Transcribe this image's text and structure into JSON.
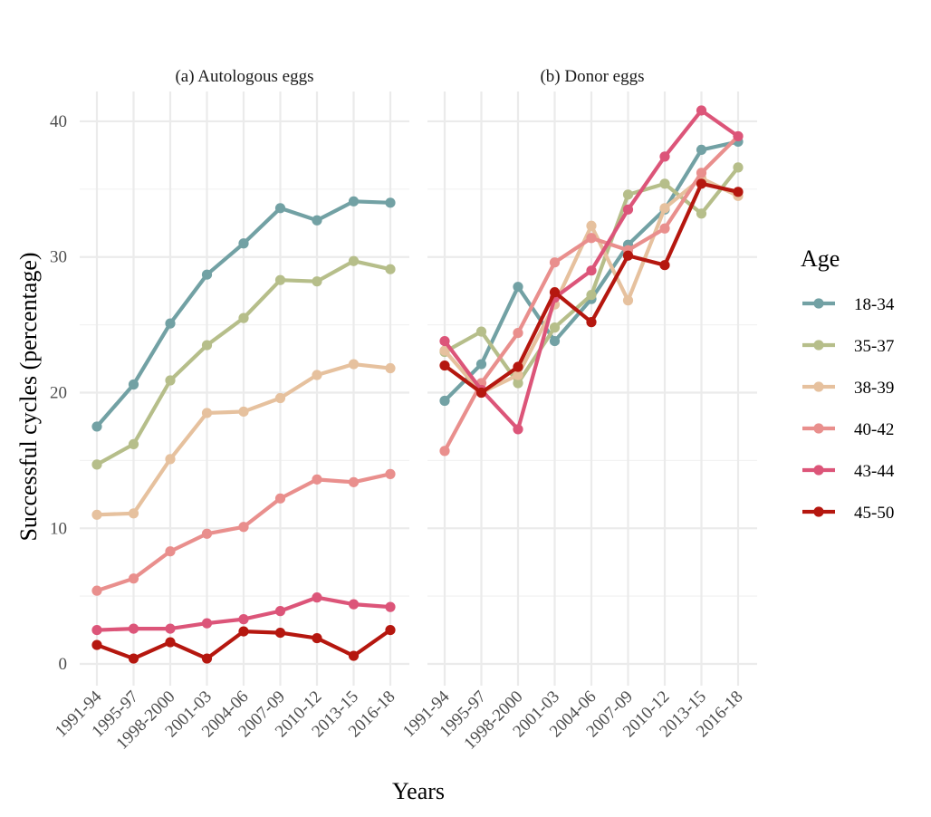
{
  "chart_data": {
    "type": "line",
    "x_label": "Years",
    "y_label": "Successful cycles (percentage)",
    "categories": [
      "1991-94",
      "1995-97",
      "1998-2000",
      "2001-03",
      "2004-06",
      "2007-09",
      "2010-12",
      "2013-15",
      "2016-18"
    ],
    "ylim": [
      -1.6,
      42.2
    ],
    "y_ticks": [
      0,
      10,
      20,
      30,
      40
    ],
    "grid": true,
    "legend": {
      "title": "Age",
      "position": "right",
      "entries": [
        {
          "name": "18-34",
          "color": "#72a1a4"
        },
        {
          "name": "35-37",
          "color": "#b6be8a"
        },
        {
          "name": "38-39",
          "color": "#e6c19e"
        },
        {
          "name": "40-42",
          "color": "#e98f8d"
        },
        {
          "name": "43-44",
          "color": "#dc5579"
        },
        {
          "name": "45-50",
          "color": "#b5170f"
        }
      ]
    },
    "panels": [
      {
        "title": "(a) Autologous eggs",
        "series": [
          {
            "name": "18-34",
            "color": "#72a1a4",
            "values": [
              17.5,
              20.6,
              25.1,
              28.7,
              31.0,
              33.6,
              32.7,
              34.1,
              34.0
            ]
          },
          {
            "name": "35-37",
            "color": "#b6be8a",
            "values": [
              14.7,
              16.2,
              20.9,
              23.5,
              25.5,
              28.3,
              28.2,
              29.7,
              29.1
            ]
          },
          {
            "name": "38-39",
            "color": "#e6c19e",
            "values": [
              11.0,
              11.1,
              15.1,
              18.5,
              18.6,
              19.6,
              21.3,
              22.1,
              21.8
            ]
          },
          {
            "name": "40-42",
            "color": "#e98f8d",
            "values": [
              5.4,
              6.3,
              8.3,
              9.6,
              10.1,
              12.2,
              13.6,
              13.4,
              14.0
            ]
          },
          {
            "name": "43-44",
            "color": "#dc5579",
            "values": [
              2.5,
              2.6,
              2.6,
              3.0,
              3.3,
              3.9,
              4.9,
              4.4,
              4.2
            ]
          },
          {
            "name": "45-50",
            "color": "#b5170f",
            "values": [
              1.4,
              0.4,
              1.6,
              0.4,
              2.4,
              2.3,
              1.9,
              0.6,
              2.5
            ]
          }
        ]
      },
      {
        "title": "(b) Donor eggs",
        "series": [
          {
            "name": "18-34",
            "color": "#72a1a4",
            "values": [
              19.4,
              22.1,
              27.8,
              23.8,
              26.9,
              30.9,
              33.5,
              37.9,
              38.5
            ]
          },
          {
            "name": "35-37",
            "color": "#b6be8a",
            "values": [
              23.0,
              24.5,
              20.7,
              24.8,
              27.2,
              34.6,
              35.4,
              33.2,
              36.6
            ]
          },
          {
            "name": "38-39",
            "color": "#e6c19e",
            "values": [
              23.1,
              20.0,
              21.3,
              26.5,
              32.3,
              26.8,
              33.6,
              35.8,
              34.5
            ]
          },
          {
            "name": "40-42",
            "color": "#e98f8d",
            "values": [
              15.7,
              20.7,
              24.4,
              29.6,
              31.4,
              30.5,
              32.1,
              36.2,
              38.9
            ]
          },
          {
            "name": "43-44",
            "color": "#dc5579",
            "values": [
              23.8,
              20.2,
              17.3,
              27.0,
              29.0,
              33.5,
              37.4,
              40.8,
              38.9
            ]
          },
          {
            "name": "45-50",
            "color": "#b5170f",
            "values": [
              22.0,
              20.0,
              21.9,
              27.4,
              25.2,
              30.1,
              29.4,
              35.4,
              34.8
            ]
          }
        ]
      }
    ]
  }
}
